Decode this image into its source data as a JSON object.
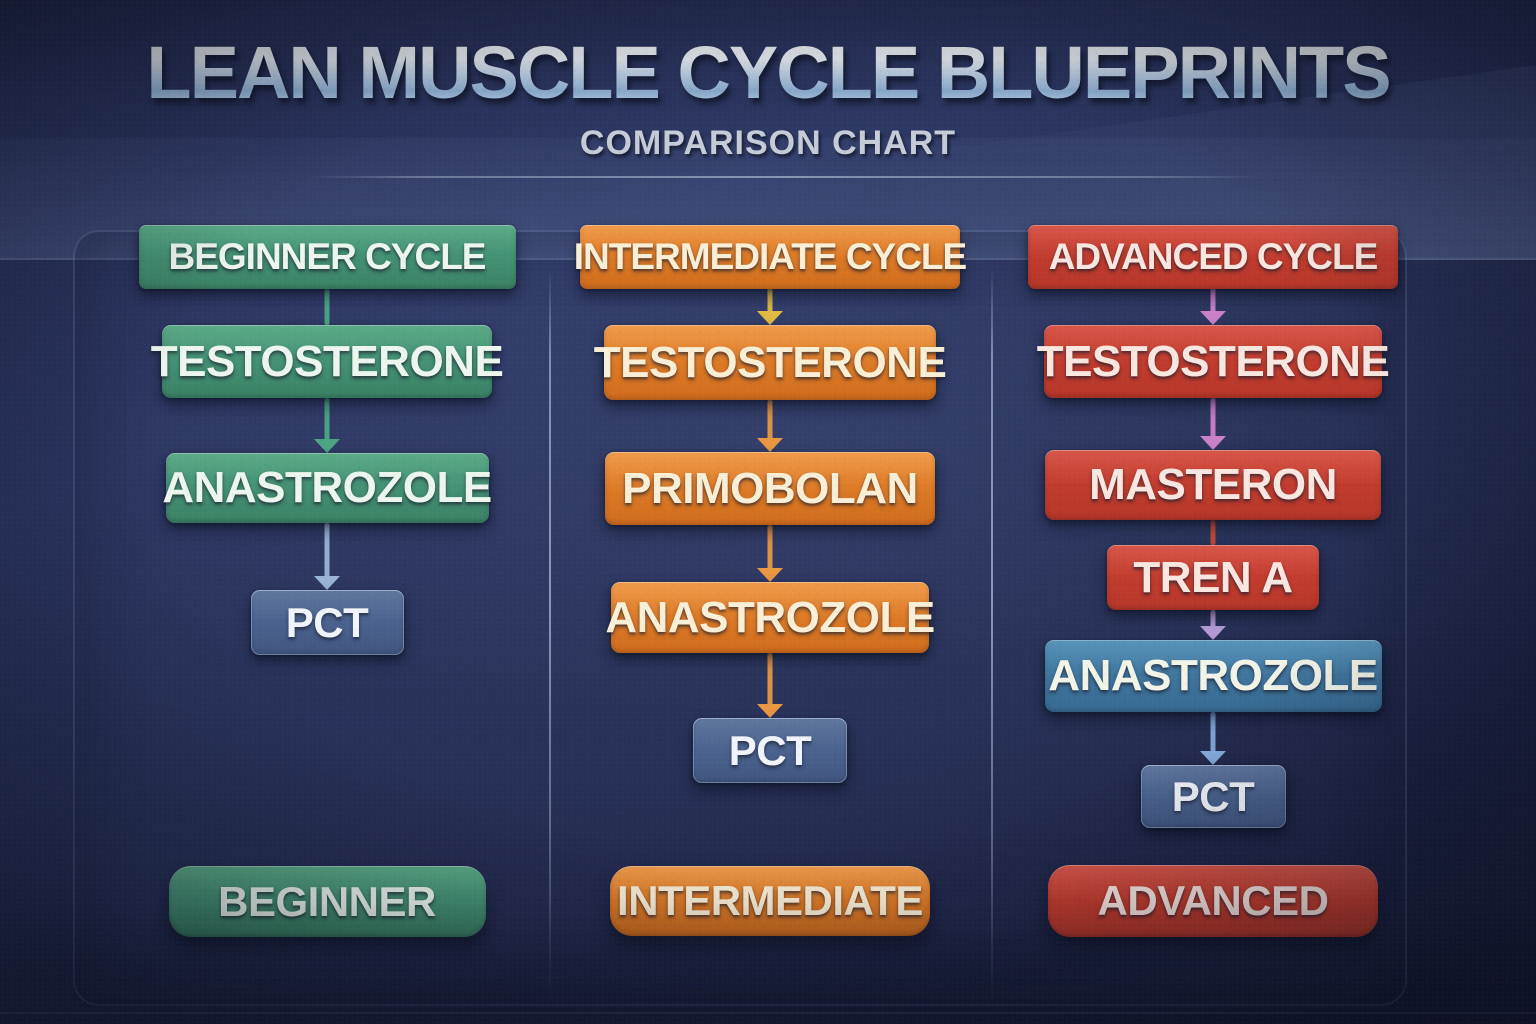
{
  "title": "LEAN MUSCLE CYCLE BLUEPRINTS",
  "subtitle": "COMPARISON CHART",
  "colors": {
    "background_navy": "#232a4d",
    "green_box": "#459376",
    "orange_box": "#dd7a26",
    "red_box": "#c23c2e",
    "steel_blue_box": "#4a628e",
    "teal_box": "#40759e",
    "divider_line": "#aebfd8",
    "title_text_gradient_top": "#ffffff",
    "title_text_gradient_bottom": "#8fb0d4",
    "subtitle_text": "#c6cbd8",
    "arrow_green": "#4da584",
    "arrow_steel": "#9ab4d6",
    "arrow_yellow": "#e2bb42",
    "arrow_amber": "#ea9742",
    "arrow_pink": "#cb80c9",
    "arrow_red": "#c94b39",
    "arrow_lavender": "#b59cd8",
    "arrow_lightblue": "#83abdb"
  },
  "columns": [
    {
      "id": "beginner",
      "header": {
        "label": "BEGINNER CYCLE",
        "style": "green"
      },
      "steps": [
        {
          "label": "TESTOSTERONE",
          "style": "green"
        },
        {
          "label": "ANASTROZOLE",
          "style": "green"
        },
        {
          "label": "PCT",
          "style": "steel"
        }
      ],
      "connectors": [
        {
          "style": "green",
          "head": false
        },
        {
          "style": "green",
          "head": true
        },
        {
          "style": "steel",
          "head": true
        }
      ],
      "footer": {
        "label": "BEGINNER",
        "style": "green"
      }
    },
    {
      "id": "intermediate",
      "header": {
        "label": "INTERMEDIATE CYCLE",
        "style": "orange"
      },
      "steps": [
        {
          "label": "TESTOSTERONE",
          "style": "orange"
        },
        {
          "label": "PRIMOBOLAN",
          "style": "orange"
        },
        {
          "label": "ANASTROZOLE",
          "style": "orange"
        },
        {
          "label": "PCT",
          "style": "steel"
        }
      ],
      "connectors": [
        {
          "style": "yellow",
          "head": true
        },
        {
          "style": "amber",
          "head": true
        },
        {
          "style": "amber",
          "head": true
        },
        {
          "style": "amber",
          "head": true
        }
      ],
      "footer": {
        "label": "INTERMEDIATE",
        "style": "orange"
      }
    },
    {
      "id": "advanced",
      "header": {
        "label": "ADVANCED CYCLE",
        "style": "red"
      },
      "steps": [
        {
          "label": "TESTOSTERONE",
          "style": "red"
        },
        {
          "label": "MASTERON",
          "style": "red"
        },
        {
          "label": "TREN A",
          "style": "red"
        },
        {
          "label": "ANASTROZOLE",
          "style": "teal"
        },
        {
          "label": "PCT",
          "style": "steel"
        }
      ],
      "connectors": [
        {
          "style": "pink",
          "head": true
        },
        {
          "style": "pink",
          "head": true
        },
        {
          "style": "red",
          "head": false
        },
        {
          "style": "lavender",
          "head": true
        },
        {
          "style": "lightblue",
          "head": true
        }
      ],
      "footer": {
        "label": "ADVANCED",
        "style": "red"
      }
    }
  ]
}
